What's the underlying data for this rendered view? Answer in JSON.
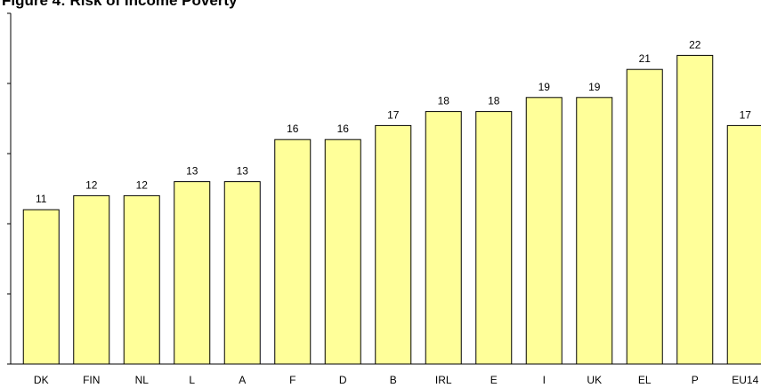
{
  "chart_data": {
    "type": "bar",
    "title": "Figure 4: Risk of Income Poverty",
    "categories": [
      "DK",
      "FIN",
      "NL",
      "L",
      "A",
      "F",
      "D",
      "B",
      "IRL",
      "E",
      "I",
      "UK",
      "EL",
      "P",
      "EU14"
    ],
    "values": [
      11,
      12,
      12,
      13,
      13,
      16,
      16,
      17,
      18,
      18,
      19,
      19,
      21,
      22,
      17
    ],
    "color": "#ffff99",
    "ylim": [
      0,
      25
    ],
    "yticks": [
      0,
      5,
      10,
      15,
      20,
      25
    ],
    "grid": false
  }
}
